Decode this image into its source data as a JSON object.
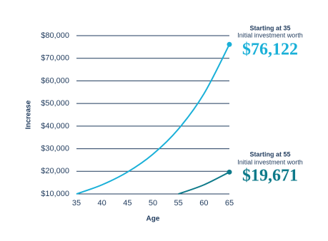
{
  "chart_data": {
    "type": "line",
    "x_label": "Age",
    "y_label": "Increase",
    "xlim": [
      35,
      65
    ],
    "xticks": [
      35,
      40,
      45,
      50,
      55,
      60,
      65
    ],
    "ylim": [
      10000,
      80000
    ],
    "yticks": [
      {
        "value": 10000,
        "label": "$10,000"
      },
      {
        "value": 20000,
        "label": "$20,000"
      },
      {
        "value": 30000,
        "label": "$30,000"
      },
      {
        "value": 40000,
        "label": "$40,000"
      },
      {
        "value": 50000,
        "label": "$50,000"
      },
      {
        "value": 60000,
        "label": "$60,000"
      },
      {
        "value": 70000,
        "label": "$70,000"
      },
      {
        "value": 80000,
        "label": "$80,000"
      }
    ],
    "grid": true,
    "series": [
      {
        "name": "Starting at 35",
        "annotation": "Initial investment worth",
        "color": "#1ab0d8",
        "x": [
          35,
          40,
          45,
          50,
          55,
          60,
          65
        ],
        "values": [
          10000,
          14026,
          19672,
          27590,
          38697,
          54274,
          76122
        ],
        "value_labels": [
          null,
          null,
          null,
          null,
          null,
          null,
          "$76,122"
        ]
      },
      {
        "name": "Starting at 55",
        "annotation": "Initial investment worth",
        "color": "#0e7a8a",
        "x": [
          55,
          60,
          65
        ],
        "values": [
          10000,
          14026,
          19671
        ],
        "value_labels": [
          null,
          null,
          "$19,671"
        ]
      }
    ]
  }
}
